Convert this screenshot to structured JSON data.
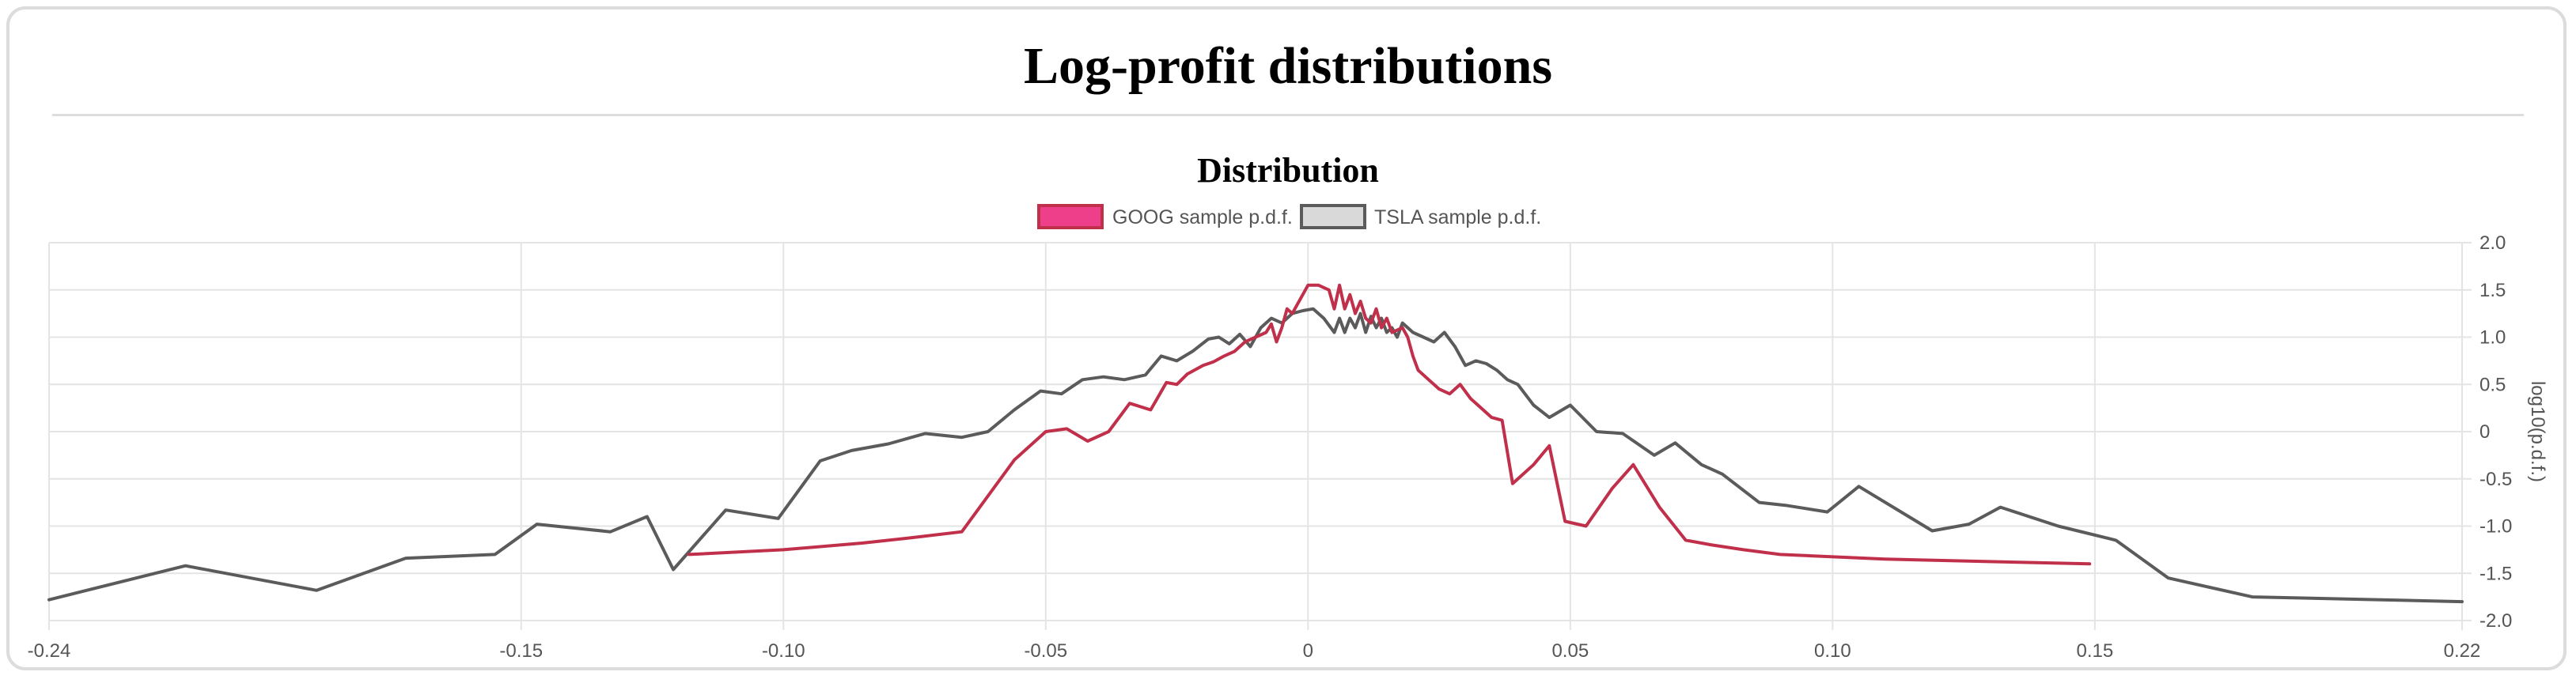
{
  "page": {
    "title": "Log-profit distributions"
  },
  "chart_data": {
    "type": "line",
    "title": "Distribution",
    "xlabel": "",
    "ylabel": "log10(p.d.f.)",
    "xlim": [
      -0.24,
      0.22
    ],
    "ylim": [
      -2.0,
      2.0
    ],
    "x_ticks": [
      -0.24,
      -0.15,
      -0.1,
      -0.05,
      0,
      0.05,
      0.1,
      0.15,
      0.22
    ],
    "x_tick_labels": [
      "-0.24",
      "-0.15",
      "-0.10",
      "-0.05",
      "0",
      "0.05",
      "0.10",
      "0.15",
      "0.22"
    ],
    "y_ticks": [
      2.0,
      1.5,
      1.0,
      0.5,
      0,
      -0.5,
      -1.0,
      -1.5,
      -2.0
    ],
    "y_tick_labels": [
      "2.0",
      "1.5",
      "1.0",
      "0.5",
      "0",
      "-0.5",
      "-1.0",
      "-1.5",
      "-2.0"
    ],
    "y_axis_position": "right",
    "grid": true,
    "legend_position": "top",
    "series": [
      {
        "name": "GOOG sample p.d.f.",
        "color": "#c0304a",
        "legend_fill": "#ee3f8a",
        "x": [
          -0.118,
          -0.1,
          -0.085,
          -0.075,
          -0.066,
          -0.056,
          -0.05,
          -0.046,
          -0.042,
          -0.038,
          -0.034,
          -0.03,
          -0.027,
          -0.025,
          -0.023,
          -0.02,
          -0.018,
          -0.016,
          -0.014,
          -0.012,
          -0.01,
          -0.008,
          -0.007,
          -0.006,
          -0.005,
          -0.004,
          -0.003,
          -0.002,
          -0.001,
          0.0,
          0.002,
          0.004,
          0.005,
          0.006,
          0.007,
          0.008,
          0.009,
          0.01,
          0.011,
          0.012,
          0.013,
          0.014,
          0.015,
          0.016,
          0.018,
          0.019,
          0.02,
          0.021,
          0.023,
          0.025,
          0.027,
          0.029,
          0.031,
          0.033,
          0.035,
          0.037,
          0.039,
          0.041,
          0.043,
          0.046,
          0.049,
          0.053,
          0.058,
          0.062,
          0.067,
          0.072,
          0.077,
          0.083,
          0.09,
          0.11,
          0.149
        ],
        "values": [
          -1.3,
          -1.25,
          -1.18,
          -1.12,
          -1.06,
          -0.3,
          0.0,
          0.03,
          -0.1,
          0.0,
          0.3,
          0.23,
          0.52,
          0.5,
          0.61,
          0.7,
          0.74,
          0.8,
          0.85,
          0.95,
          1.0,
          1.05,
          1.14,
          0.95,
          1.1,
          1.3,
          1.25,
          1.35,
          1.45,
          1.55,
          1.55,
          1.5,
          1.3,
          1.55,
          1.3,
          1.45,
          1.25,
          1.38,
          1.2,
          1.15,
          1.3,
          1.1,
          1.2,
          1.05,
          1.1,
          1.0,
          0.8,
          0.65,
          0.55,
          0.45,
          0.4,
          0.5,
          0.35,
          0.25,
          0.15,
          0.12,
          -0.55,
          -0.45,
          -0.35,
          -0.15,
          -0.95,
          -1.0,
          -0.6,
          -0.35,
          -0.8,
          -1.15,
          -1.2,
          -1.25,
          -1.3,
          -1.35,
          -1.4
        ]
      },
      {
        "name": "TSLA sample p.d.f.",
        "color": "#5b5b5b",
        "legend_fill": "#d9d9d9",
        "x": [
          -0.24,
          -0.214,
          -0.189,
          -0.172,
          -0.155,
          -0.147,
          -0.133,
          -0.126,
          -0.121,
          -0.111,
          -0.101,
          -0.093,
          -0.087,
          -0.08,
          -0.073,
          -0.066,
          -0.061,
          -0.056,
          -0.051,
          -0.047,
          -0.043,
          -0.039,
          -0.035,
          -0.031,
          -0.028,
          -0.025,
          -0.022,
          -0.019,
          -0.017,
          -0.015,
          -0.013,
          -0.011,
          -0.009,
          -0.007,
          -0.005,
          -0.003,
          -0.001,
          0.001,
          0.003,
          0.005,
          0.006,
          0.007,
          0.008,
          0.009,
          0.01,
          0.011,
          0.012,
          0.013,
          0.014,
          0.015,
          0.016,
          0.017,
          0.018,
          0.02,
          0.022,
          0.024,
          0.026,
          0.028,
          0.03,
          0.032,
          0.034,
          0.036,
          0.038,
          0.04,
          0.043,
          0.046,
          0.05,
          0.055,
          0.06,
          0.066,
          0.07,
          0.075,
          0.079,
          0.086,
          0.091,
          0.099,
          0.105,
          0.119,
          0.126,
          0.132,
          0.143,
          0.154,
          0.164,
          0.18,
          0.22
        ],
        "values": [
          -1.78,
          -1.42,
          -1.68,
          -1.34,
          -1.3,
          -0.98,
          -1.06,
          -0.9,
          -1.46,
          -0.83,
          -0.92,
          -0.31,
          -0.2,
          -0.13,
          -0.02,
          -0.06,
          0.0,
          0.23,
          0.43,
          0.4,
          0.55,
          0.58,
          0.55,
          0.6,
          0.8,
          0.75,
          0.85,
          0.98,
          1.0,
          0.93,
          1.03,
          0.9,
          1.1,
          1.2,
          1.15,
          1.25,
          1.28,
          1.3,
          1.2,
          1.05,
          1.2,
          1.05,
          1.2,
          1.1,
          1.25,
          1.05,
          1.22,
          1.1,
          1.2,
          1.05,
          1.1,
          1.0,
          1.15,
          1.05,
          1.0,
          0.95,
          1.05,
          0.9,
          0.7,
          0.75,
          0.72,
          0.65,
          0.55,
          0.5,
          0.28,
          0.15,
          0.28,
          0.0,
          -0.02,
          -0.25,
          -0.12,
          -0.35,
          -0.45,
          -0.75,
          -0.78,
          -0.85,
          -0.58,
          -1.05,
          -0.98,
          -0.8,
          -1.0,
          -1.15,
          -1.55,
          -1.75,
          -1.8
        ]
      }
    ]
  }
}
